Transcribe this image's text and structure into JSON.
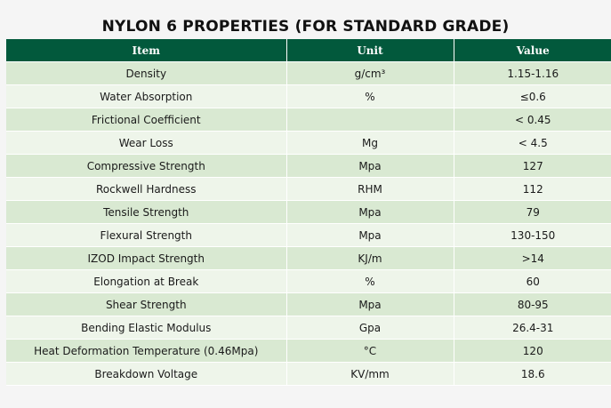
{
  "title": "NYLON 6 PROPERTIES (FOR STANDARD GRADE)",
  "colors": {
    "header_bg": "#02593c",
    "header_text": "#ffffff",
    "row_odd_bg": "#d9e9d2",
    "row_even_bg": "#eef5ea"
  },
  "table": {
    "headers": {
      "item": "Item",
      "unit": "Unit",
      "value": "Value"
    },
    "rows": [
      {
        "item": "Density",
        "unit": "g/cm³",
        "value": "1.15-1.16"
      },
      {
        "item": "Water Absorption",
        "unit": "%",
        "value": "≤0.6"
      },
      {
        "item": "Frictional Coefficient",
        "unit": "",
        "value": "< 0.45"
      },
      {
        "item": "Wear Loss",
        "unit": "Mg",
        "value": "< 4.5"
      },
      {
        "item": "Compressive Strength",
        "unit": "Mpa",
        "value": "127"
      },
      {
        "item": "Rockwell Hardness",
        "unit": "RHM",
        "value": "112"
      },
      {
        "item": "Tensile Strength",
        "unit": "Mpa",
        "value": "79"
      },
      {
        "item": "Flexural Strength",
        "unit": "Mpa",
        "value": "130-150"
      },
      {
        "item": "IZOD Impact Strength",
        "unit": "KJ/m",
        "value": ">14"
      },
      {
        "item": "Elongation at Break",
        "unit": "%",
        "value": "60"
      },
      {
        "item": "Shear Strength",
        "unit": "Mpa",
        "value": "80-95"
      },
      {
        "item": "Bending Elastic Modulus",
        "unit": "Gpa",
        "value": "26.4-31"
      },
      {
        "item": "Heat Deformation Temperature (0.46Mpa)",
        "unit": "°C",
        "value": "120"
      },
      {
        "item": "Breakdown Voltage",
        "unit": "KV/mm",
        "value": "18.6"
      }
    ]
  }
}
